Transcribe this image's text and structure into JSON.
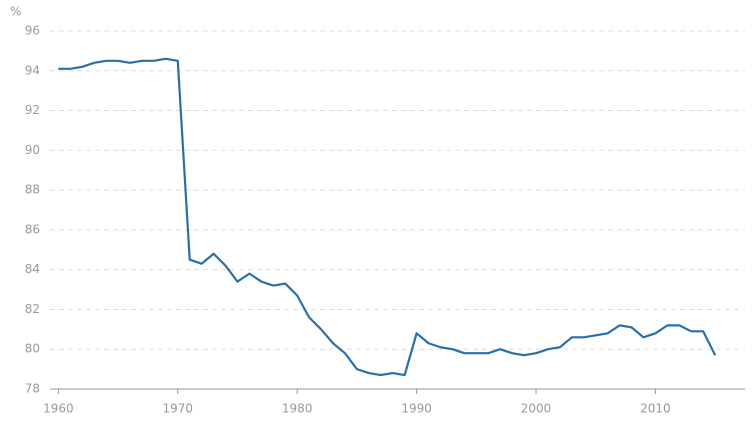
{
  "chart_data": {
    "type": "line",
    "y_label": "%",
    "x": [
      1960,
      1961,
      1962,
      1963,
      1964,
      1965,
      1966,
      1967,
      1968,
      1969,
      1970,
      1971,
      1972,
      1973,
      1974,
      1975,
      1976,
      1977,
      1978,
      1979,
      1980,
      1981,
      1982,
      1983,
      1984,
      1985,
      1986,
      1987,
      1988,
      1989,
      1990,
      1991,
      1992,
      1993,
      1994,
      1995,
      1996,
      1997,
      1998,
      1999,
      2000,
      2001,
      2002,
      2003,
      2004,
      2005,
      2006,
      2007,
      2008,
      2009,
      2010,
      2011,
      2012,
      2013,
      2014,
      2015
    ],
    "series": [
      {
        "color": "#2a6fa8",
        "values": [
          94.1,
          94.1,
          94.2,
          94.4,
          94.5,
          94.5,
          94.4,
          94.5,
          94.5,
          94.6,
          94.5,
          84.5,
          84.3,
          84.8,
          84.2,
          83.4,
          83.8,
          83.4,
          83.2,
          83.3,
          82.7,
          81.6,
          81.0,
          80.3,
          79.8,
          79.0,
          78.8,
          78.7,
          78.8,
          78.7,
          80.8,
          80.3,
          80.1,
          80.0,
          79.8,
          79.8,
          79.8,
          80.0,
          79.8,
          79.7,
          79.8,
          80.0,
          80.1,
          80.6,
          80.6,
          80.7,
          80.8,
          81.2,
          81.1,
          80.6,
          80.8,
          81.2,
          81.2,
          80.9,
          80.9,
          79.7
        ]
      }
    ],
    "xlim": [
      1959.3,
      2017.5
    ],
    "xticks": [
      1960,
      1970,
      1980,
      1990,
      2000,
      2010
    ],
    "ylim": [
      78,
      96
    ],
    "yticks": [
      78,
      80,
      82,
      84,
      86,
      88,
      90,
      92,
      94,
      96
    ],
    "grid": true
  }
}
